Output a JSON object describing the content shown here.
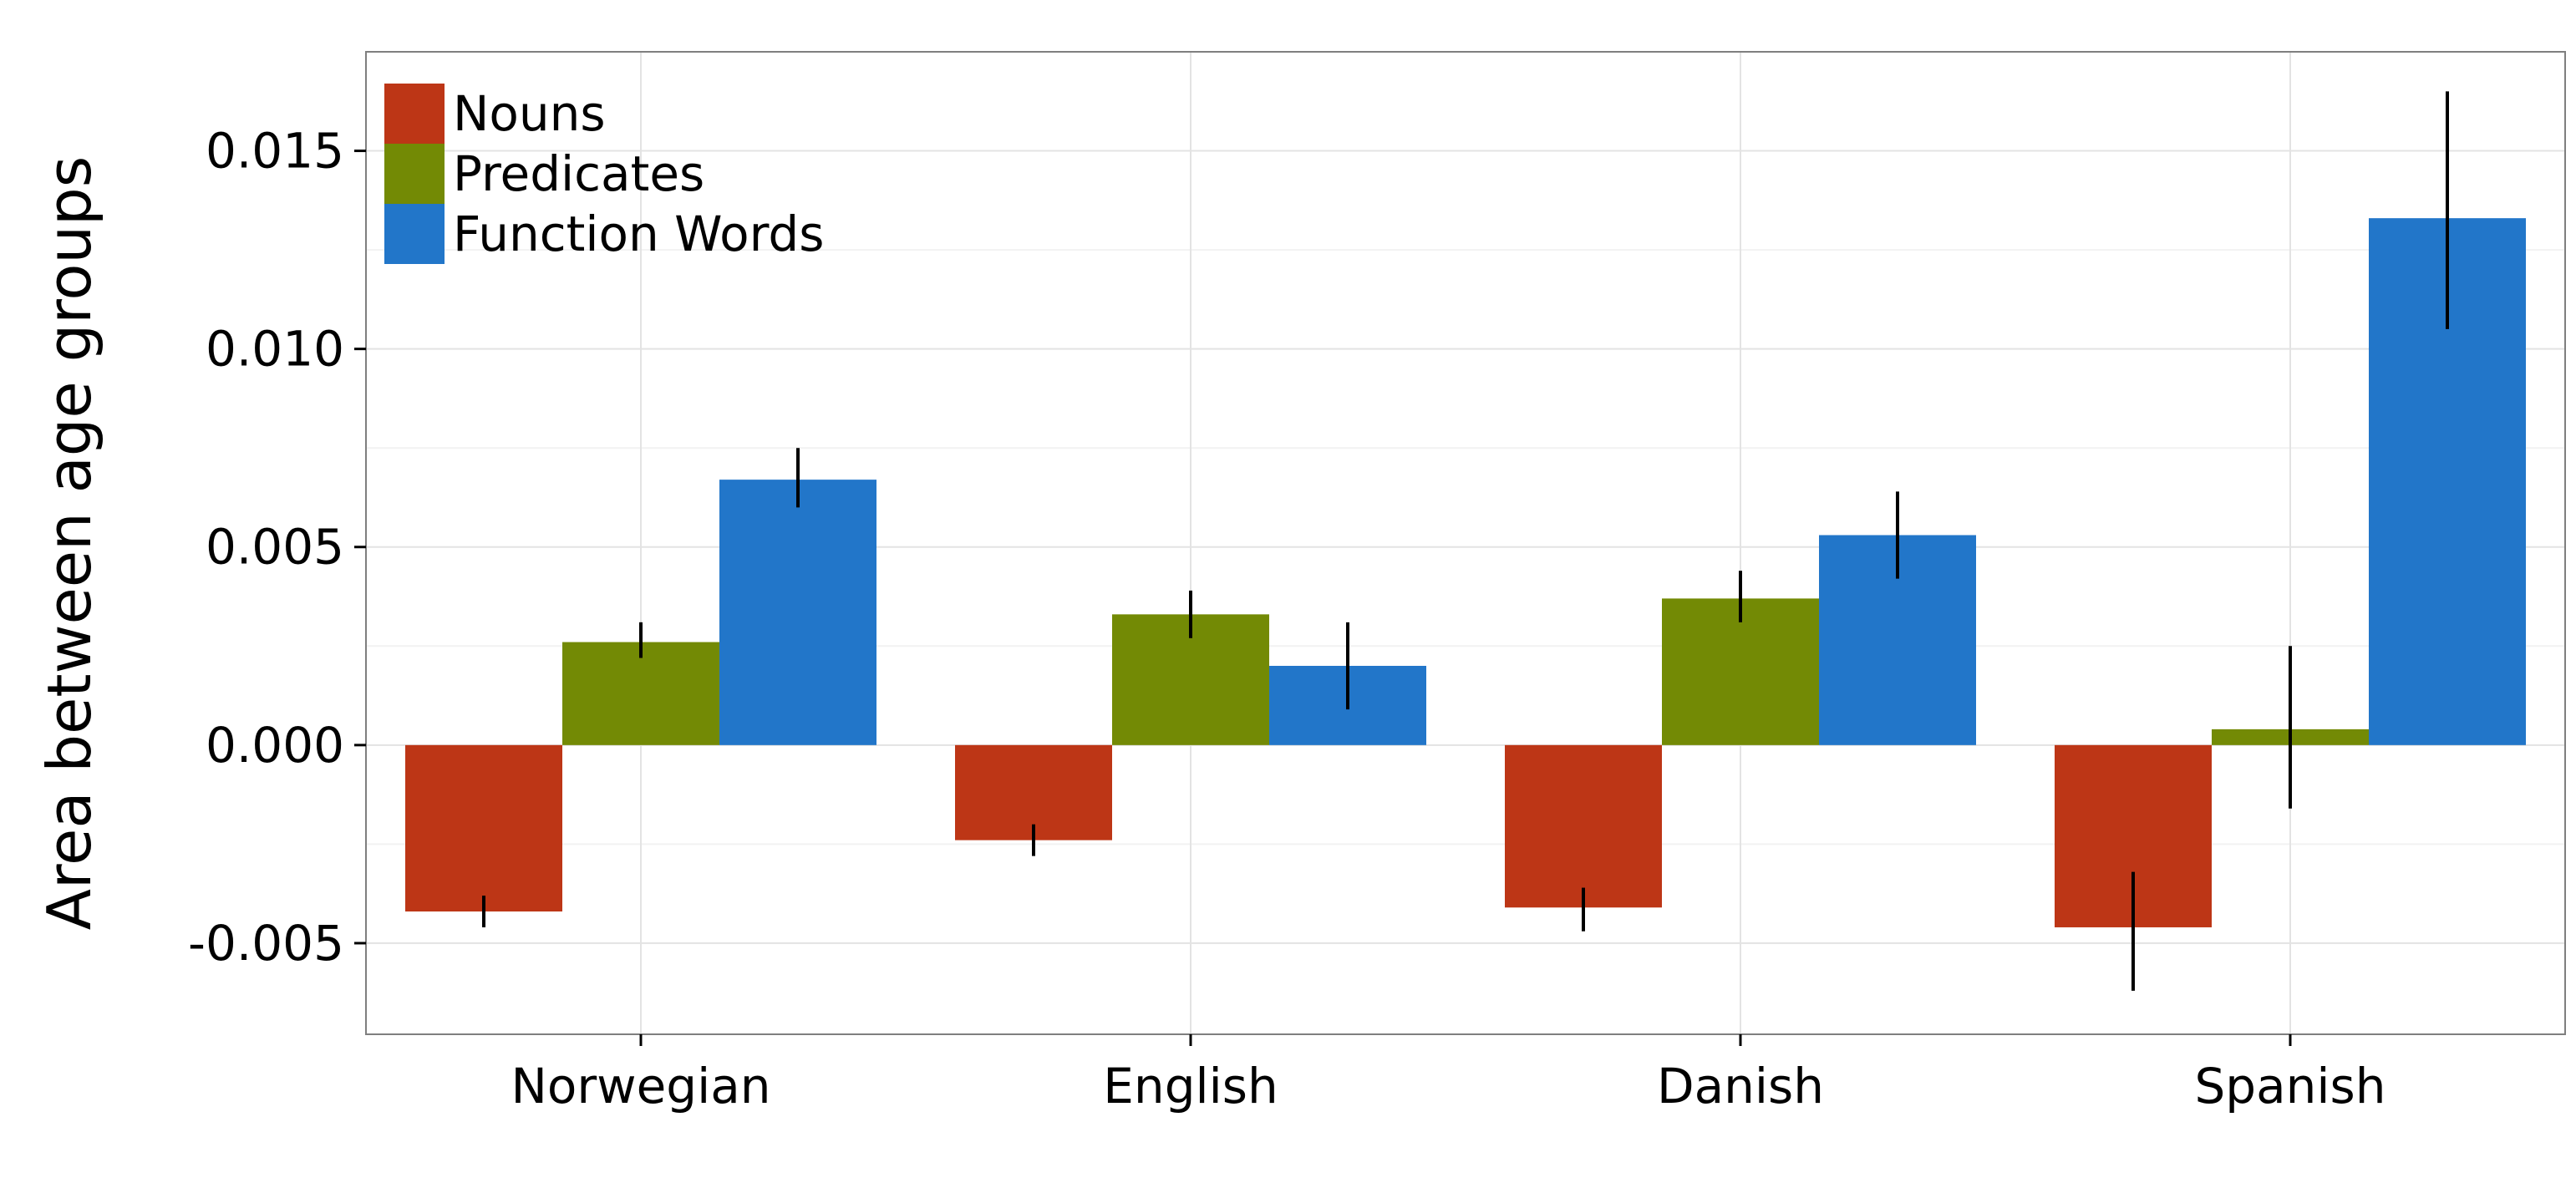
{
  "chart_data": {
    "type": "bar",
    "title": "",
    "xlabel": "",
    "ylabel": "Area between age groups",
    "categories": [
      "Norwegian",
      "English",
      "Danish",
      "Spanish"
    ],
    "ylim": [
      -0.0073,
      0.0175
    ],
    "yticks": [
      -0.005,
      0.0,
      0.005,
      0.01,
      0.015
    ],
    "ytick_labels": [
      "-0.005",
      "0.000",
      "0.005",
      "0.010",
      "0.015"
    ],
    "grid": true,
    "legend_position": "top-left",
    "series": [
      {
        "name": "Nouns",
        "color": "#bd3616",
        "values": [
          -0.0042,
          -0.0024,
          -0.0041,
          -0.0046
        ],
        "err_low": [
          -0.0046,
          -0.0028,
          -0.0047,
          -0.0062
        ],
        "err_high": [
          -0.0038,
          -0.002,
          -0.0036,
          -0.0032
        ]
      },
      {
        "name": "Predicates",
        "color": "#738a05",
        "values": [
          0.0026,
          0.0033,
          0.0037,
          0.0004
        ],
        "err_low": [
          0.0022,
          0.0027,
          0.0031,
          -0.0016
        ],
        "err_high": [
          0.0031,
          0.0039,
          0.0044,
          0.0025
        ]
      },
      {
        "name": "Function Words",
        "color": "#2276c9",
        "values": [
          0.0067,
          0.002,
          0.0053,
          0.0133
        ],
        "err_low": [
          0.006,
          0.0009,
          0.0042,
          0.0105
        ],
        "err_high": [
          0.0075,
          0.0031,
          0.0064,
          0.0165
        ]
      }
    ]
  }
}
